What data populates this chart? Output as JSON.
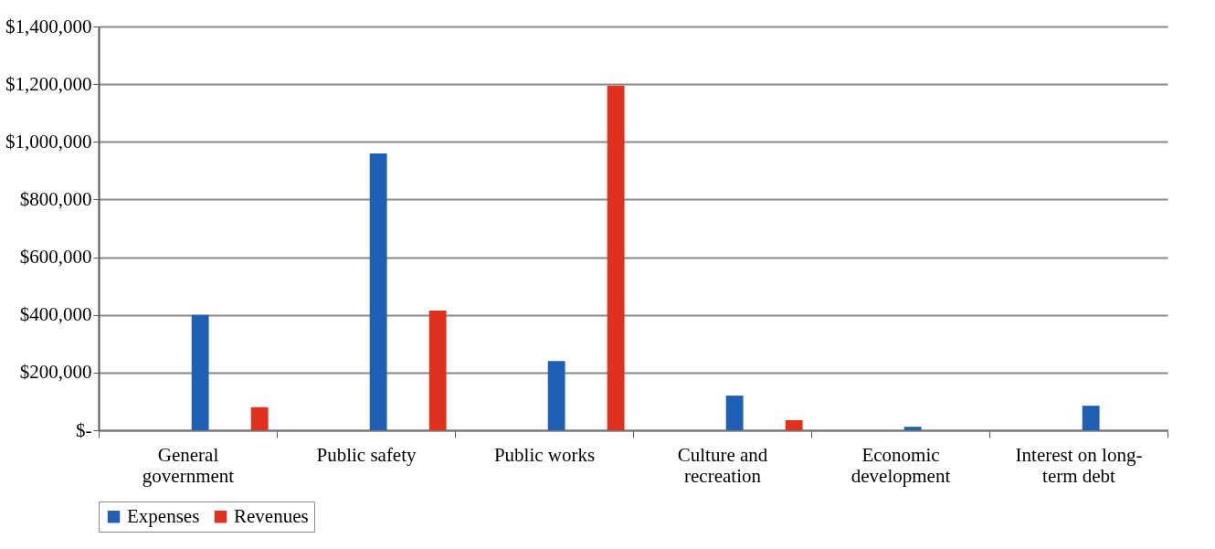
{
  "chart_data": {
    "type": "bar",
    "categories": [
      "General government",
      "Public safety",
      "Public works",
      "Culture and recreation",
      "Economic development",
      "Interest on long-term debt"
    ],
    "series": [
      {
        "name": "Expenses",
        "color": "#1f5fb4",
        "values": [
          400000,
          960000,
          240000,
          120000,
          12000,
          85000
        ]
      },
      {
        "name": "Revenues",
        "color": "#e0301e",
        "values": [
          80000,
          415000,
          1195000,
          35000,
          0,
          0
        ]
      }
    ],
    "ylim": [
      0,
      1400000
    ],
    "yticks": [
      {
        "value": 0,
        "label": "$-"
      },
      {
        "value": 200000,
        "label": "$200,000"
      },
      {
        "value": 400000,
        "label": "$400,000"
      },
      {
        "value": 600000,
        "label": "$600,000"
      },
      {
        "value": 800000,
        "label": "$800,000"
      },
      {
        "value": 1000000,
        "label": "$1,000,000"
      },
      {
        "value": 1200000,
        "label": "$1,200,000"
      },
      {
        "value": 1400000,
        "label": "$1,400,000"
      }
    ],
    "grid": "y",
    "legend": "bottom"
  }
}
